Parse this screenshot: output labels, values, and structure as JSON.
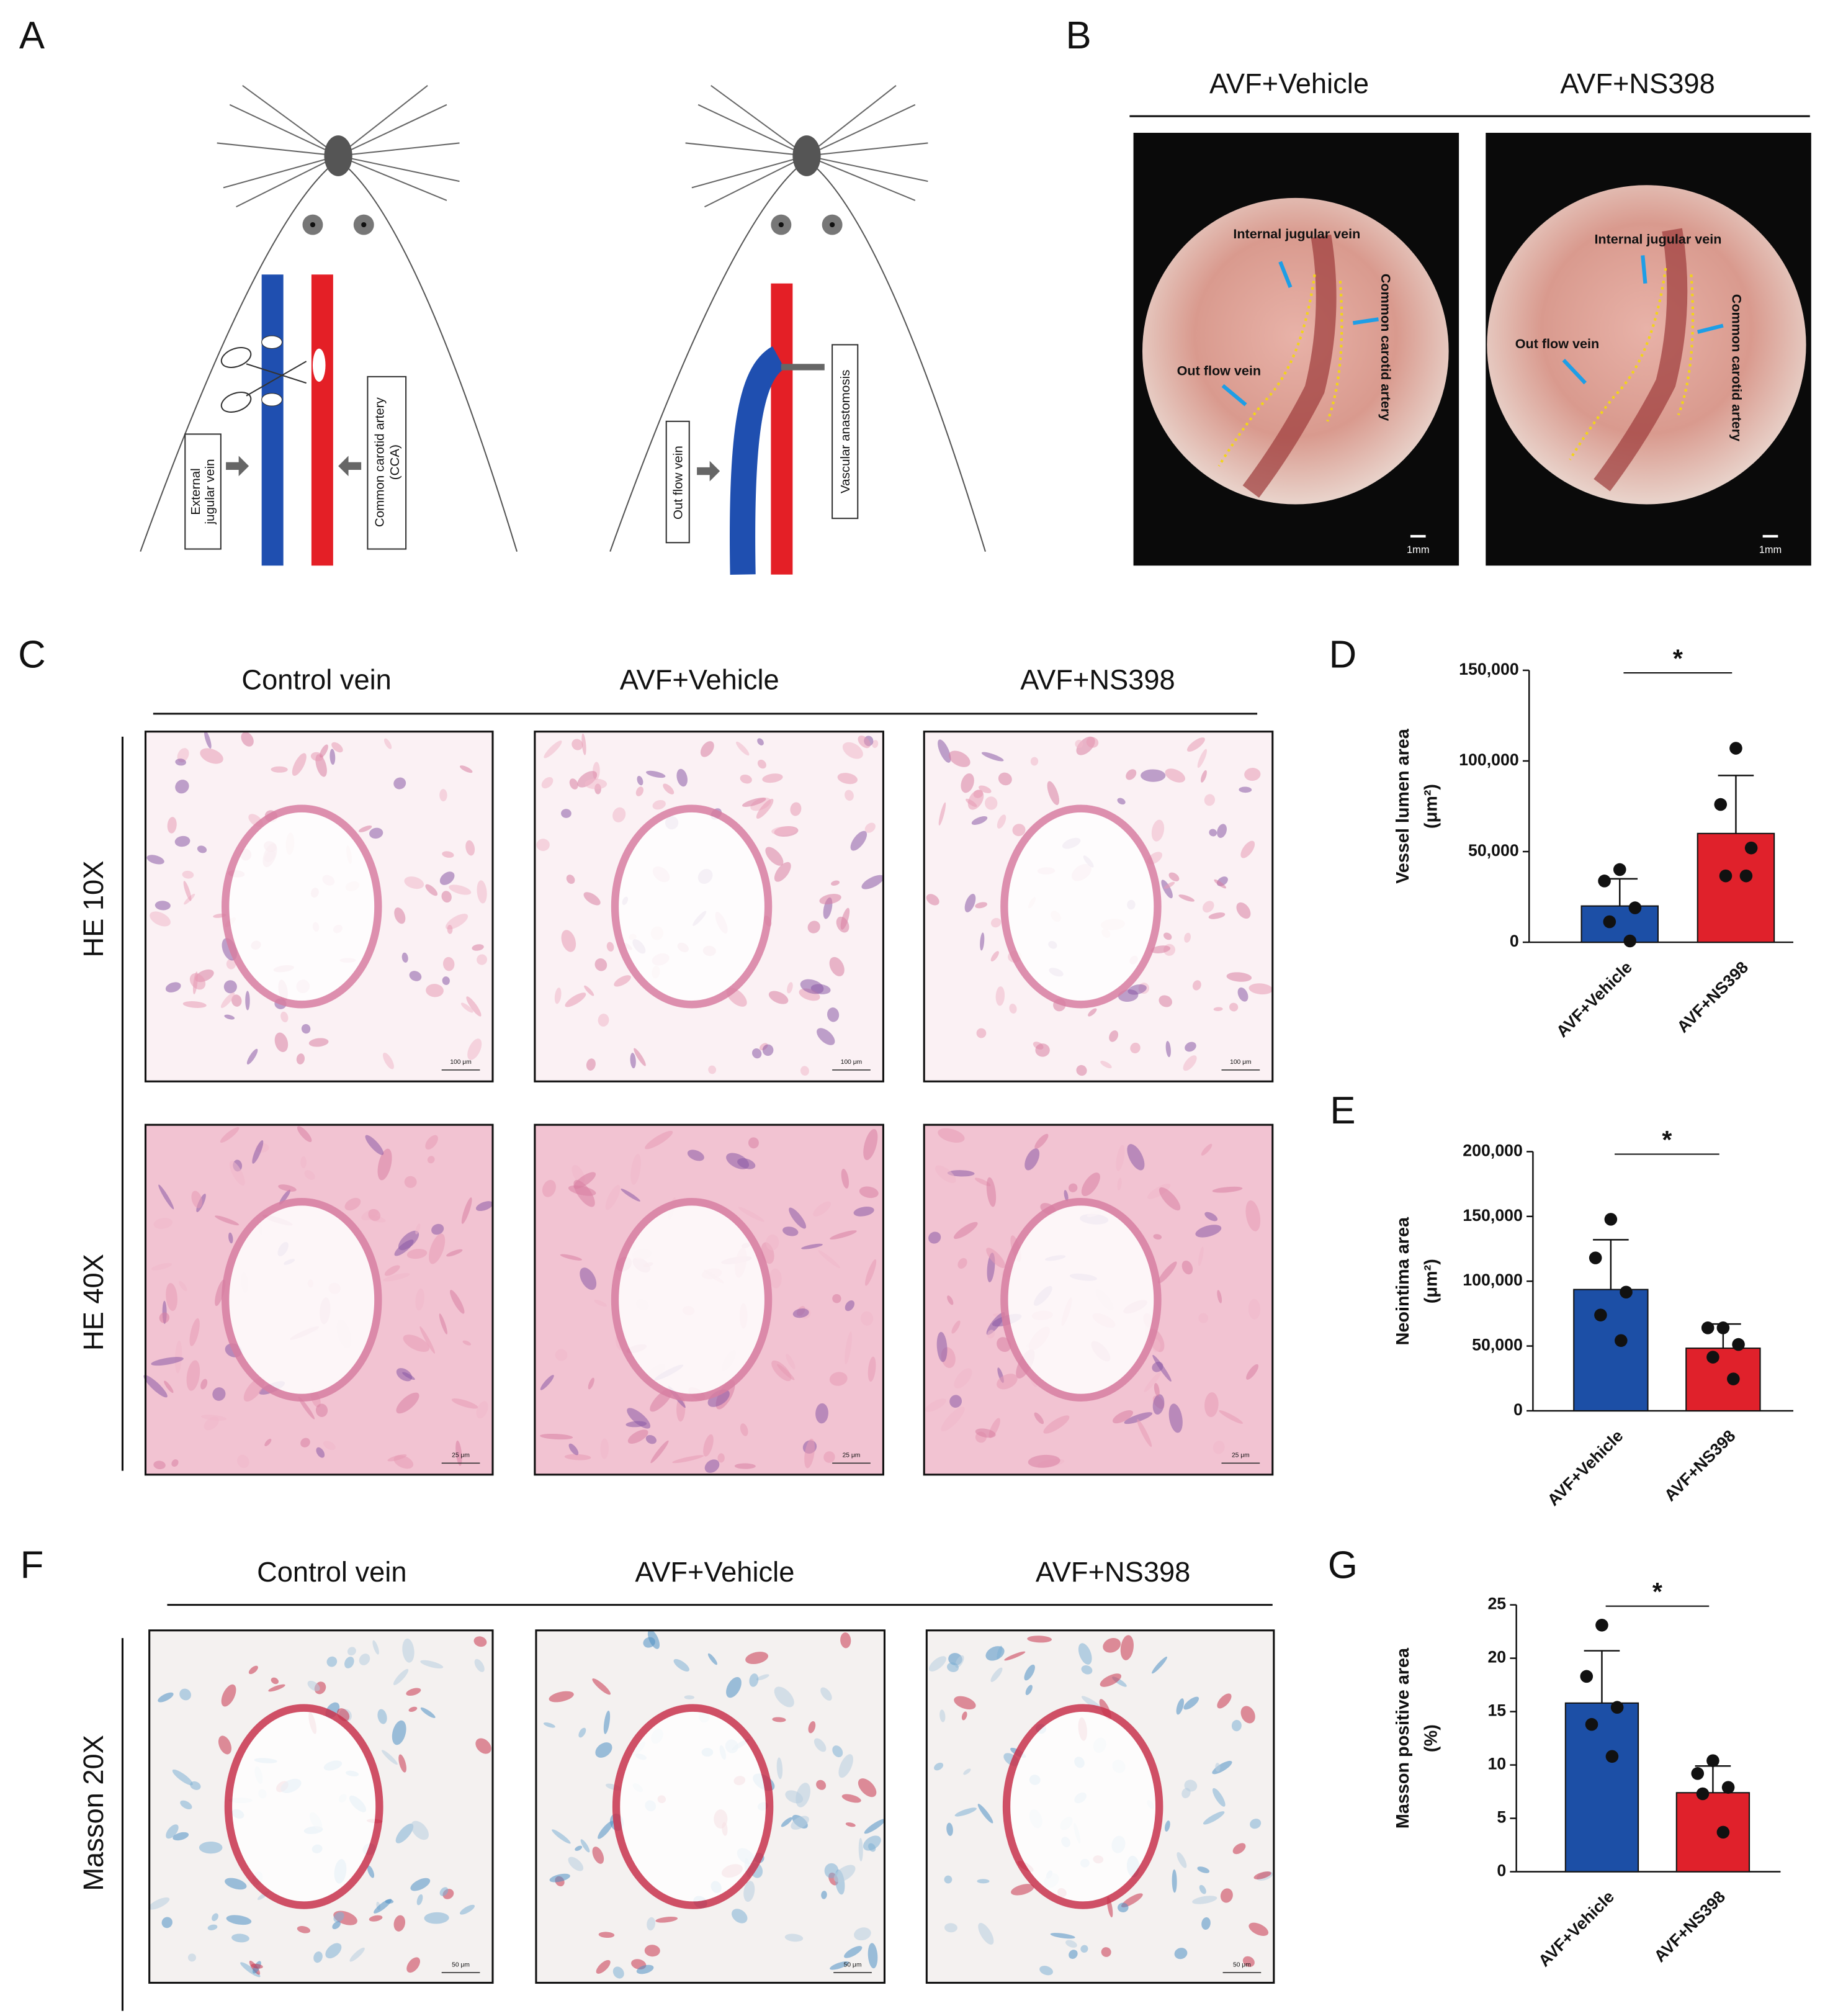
{
  "panel_labels": [
    "A",
    "B",
    "C",
    "D",
    "E",
    "F",
    "G"
  ],
  "panel_a": {
    "left_labels": [
      [
        "External",
        "jugular vein"
      ],
      [
        "Common carotid artery",
        "(CCA)"
      ]
    ],
    "right_labels": [
      [
        "Out flow vein"
      ],
      [
        "Vascular anastomosis"
      ]
    ]
  },
  "panel_b": {
    "columns": [
      "AVF+Vehicle",
      "AVF+NS398"
    ],
    "photos": [
      {
        "labels": [
          "Internal jugular vein",
          "Common carotid artery",
          "Out flow vein"
        ],
        "scale_bar": "1mm"
      },
      {
        "labels": [
          "Internal jugular vein",
          "Common carotid artery",
          "Out flow vein"
        ],
        "scale_bar": "1mm"
      }
    ]
  },
  "panel_c": {
    "columns": [
      "Control vein",
      "AVF+Vehicle",
      "AVF+NS398"
    ],
    "rows": [
      "HE 10X",
      "HE 40X"
    ],
    "scale_bars": [
      "100 μm",
      "25 μm"
    ]
  },
  "panel_f": {
    "columns": [
      "Control vein",
      "AVF+Vehicle",
      "AVF+NS398"
    ],
    "rows": [
      "Masson 20X"
    ],
    "scale_bar": "50 μm"
  },
  "chart_data": [
    {
      "type": "bar",
      "ylabel": [
        "Vessel lumen area",
        "(μm²)"
      ],
      "categories": [
        "AVF+Vehicle",
        "AVF+NS398"
      ],
      "values": [
        20000,
        60000
      ],
      "errors": [
        15000,
        32000
      ],
      "points": [
        [
          40100,
          33800,
          19000,
          11300,
          700
        ],
        [
          107000,
          76000,
          52000,
          36600,
          36600
        ]
      ],
      "colors": [
        "#1c4fa6",
        "#e0212b"
      ],
      "ylim": [
        0,
        150000
      ],
      "yticks": [
        0,
        {
          "value": 50000,
          "label": "50,000"
        },
        {
          "value": 100000,
          "label": "100,000"
        },
        {
          "value": 150000,
          "label": "150,000"
        }
      ],
      "annotation": "*"
    },
    {
      "type": "bar",
      "ylabel": [
        "Neointima area",
        "(μm²)"
      ],
      "categories": [
        "AVF+Vehicle",
        "AVF+NS398"
      ],
      "values": [
        93600,
        48300
      ],
      "errors": [
        38400,
        18700
      ],
      "points": [
        [
          147800,
          118000,
          91600,
          73900,
          54200
        ],
        [
          64000,
          64000,
          51200,
          41400,
          24600
        ]
      ],
      "colors": [
        "#1c4fa6",
        "#e0212b"
      ],
      "ylim": [
        0,
        200000
      ],
      "yticks": [
        0,
        {
          "value": 50000,
          "label": "50,000"
        },
        {
          "value": 100000,
          "label": "100,000"
        },
        {
          "value": 150000,
          "label": "150,000"
        },
        {
          "value": 200000,
          "label": "200,000"
        }
      ],
      "annotation": "*"
    },
    {
      "type": "bar",
      "ylabel": [
        "Masson positive area",
        "(%)"
      ],
      "categories": [
        "AVF+Vehicle",
        "AVF+NS398"
      ],
      "values": [
        15.8,
        7.4
      ],
      "errors": [
        4.9,
        2.5
      ],
      "points": [
        [
          23.1,
          18.3,
          15.4,
          13.8,
          10.8
        ],
        [
          10.4,
          9.2,
          7.9,
          7.3,
          3.7
        ]
      ],
      "colors": [
        "#1c4fa6",
        "#e0212b"
      ],
      "ylim": [
        0,
        25
      ],
      "yticks": [
        0,
        5,
        10,
        15,
        20,
        25
      ],
      "annotation": "*"
    }
  ]
}
